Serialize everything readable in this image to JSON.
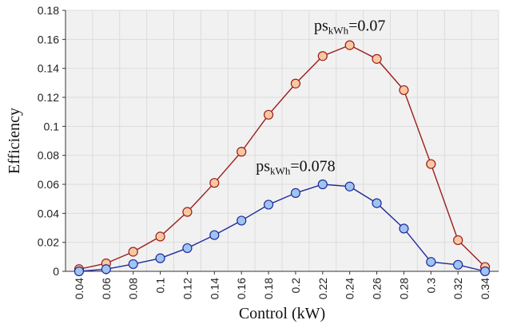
{
  "chart_data": {
    "type": "line",
    "xlabel": "Control (kW)",
    "ylabel": "Efficiency",
    "x": [
      0.04,
      0.06,
      0.08,
      0.1,
      0.12,
      0.14,
      0.16,
      0.18,
      0.2,
      0.22,
      0.24,
      0.26,
      0.28,
      0.3,
      0.32,
      0.34
    ],
    "x_tick_labels": [
      "0.04",
      "0.06",
      "0.08",
      "0.1",
      "0.12",
      "0.14",
      "0.16",
      "0.18",
      "0.2",
      "0.22",
      "0.24",
      "0.26",
      "0.28",
      "0.3",
      "0.32",
      "0.34"
    ],
    "ylim": [
      0,
      0.18
    ],
    "y_ticks": [
      0,
      0.02,
      0.04,
      0.06,
      0.08,
      0.1,
      0.12,
      0.14,
      0.16,
      0.18
    ],
    "y_tick_labels": [
      "0",
      "0.02",
      "0.04",
      "0.06",
      "0.08",
      "0.1",
      "0.12",
      "0.14",
      "0.16",
      "0.18"
    ],
    "grid": true,
    "series": [
      {
        "line_color": "#9b1c1c",
        "marker_color": "#f8c8a0",
        "values": [
          0.0015,
          0.0055,
          0.0135,
          0.024,
          0.041,
          0.061,
          0.0825,
          0.108,
          0.1295,
          0.1485,
          0.156,
          0.1465,
          0.125,
          0.074,
          0.0215,
          0.003
        ]
      },
      {
        "line_color": "#1f2a9c",
        "marker_color": "#9fc4f0",
        "values": [
          0.0,
          0.0015,
          0.005,
          0.009,
          0.016,
          0.025,
          0.035,
          0.046,
          0.054,
          0.06,
          0.0585,
          0.047,
          0.0295,
          0.0065,
          0.0045,
          0.0
        ]
      }
    ],
    "annotations": [
      {
        "prefix": "ps",
        "sub": "kWh",
        "suffix": "=0.07",
        "x": 0.24,
        "y": 0.166
      },
      {
        "prefix": "ps",
        "sub": "kWh",
        "suffix": "=0.078",
        "x": 0.2,
        "y": 0.069
      }
    ]
  }
}
